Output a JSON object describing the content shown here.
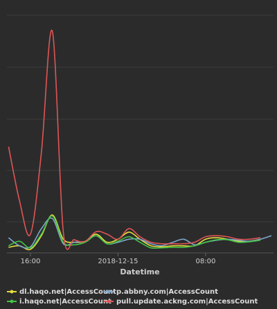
{
  "chart_data": {
    "type": "line",
    "x_label": "Datetime",
    "x": [
      14,
      15,
      16,
      17,
      18,
      19,
      20,
      21,
      22,
      23,
      24,
      25,
      26,
      27,
      28,
      29,
      30,
      31,
      32,
      33,
      34,
      35,
      36,
      37,
      38
    ],
    "xlim": [
      13.85,
      38.2
    ],
    "xticks": [
      {
        "value": 16,
        "label": "16:00"
      },
      {
        "value": 24,
        "label": "2018-12-15"
      },
      {
        "value": 32,
        "label": "08:00"
      }
    ],
    "ylim": [
      0,
      500
    ],
    "series": [
      {
        "name": "dl.haqo.net|AccessCount",
        "color": "#e6dc3c",
        "values": [
          11,
          14,
          7,
          34,
          75,
          27,
          21,
          23,
          37,
          21,
          27,
          41,
          27,
          14,
          12,
          14,
          14,
          14,
          27,
          30,
          27,
          23,
          23,
          27,
          null
        ]
      },
      {
        "name": "p.abbny.com|AccessCount",
        "color": "#7fa7cc",
        "values": [
          30,
          14,
          12,
          48,
          68,
          18,
          21,
          23,
          34,
          18,
          21,
          27,
          27,
          18,
          14,
          21,
          27,
          16,
          21,
          25,
          27,
          25,
          23,
          27,
          34
        ]
      },
      {
        "name": "i.haqo.net|AccessCount",
        "color": "#44c444",
        "values": [
          14,
          23,
          10,
          37,
          73,
          21,
          16,
          21,
          34,
          18,
          23,
          32,
          21,
          10,
          10,
          11,
          11,
          14,
          21,
          26,
          26,
          21,
          22,
          25,
          null
        ]
      },
      {
        "name": "pull.update.ackng.com|AccessCount",
        "color": "#e05555",
        "values": [
          210,
          103,
          37,
          199,
          438,
          41,
          26,
          23,
          42,
          37,
          27,
          48,
          32,
          21,
          18,
          18,
          18,
          21,
          32,
          34,
          32,
          27,
          27,
          30,
          null
        ]
      }
    ]
  }
}
